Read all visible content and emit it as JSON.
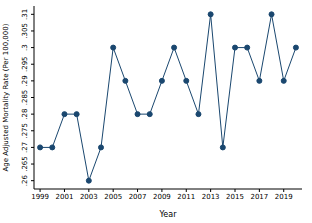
{
  "chart_data": {
    "type": "line",
    "x_label": "Year",
    "y_label": "Age Adjusted Mortality Rate (Per 100,000)",
    "x": [
      1999,
      2000,
      2001,
      2002,
      2003,
      2004,
      2005,
      2006,
      2007,
      2008,
      2009,
      2010,
      2011,
      2012,
      2013,
      2014,
      2015,
      2016,
      2017,
      2018,
      2019,
      2020
    ],
    "series": [
      {
        "name": "Age Adjusted Mortality Rate (Per 100,000)",
        "color": "#1a476f",
        "marker": "circle",
        "line_style": "solid",
        "values": [
          0.27,
          0.27,
          0.28,
          0.28,
          0.26,
          0.27,
          0.3,
          0.29,
          0.28,
          0.28,
          0.29,
          0.3,
          0.29,
          0.28,
          0.31,
          0.27,
          0.3,
          0.3,
          0.29,
          0.31,
          0.29,
          0.3
        ]
      }
    ],
    "xlim": [
      1998.5,
      2020.5
    ],
    "xticks": [
      1999,
      2001,
      2003,
      2005,
      2007,
      2009,
      2011,
      2013,
      2015,
      2017,
      2019
    ],
    "ylim": [
      0.2575,
      0.3125
    ],
    "yticks": [
      {
        "value": 0.26,
        "label": ".26"
      },
      {
        "value": 0.265,
        "label": ".265"
      },
      {
        "value": 0.27,
        "label": ".27"
      },
      {
        "value": 0.275,
        "label": ".275"
      },
      {
        "value": 0.28,
        "label": ".28"
      },
      {
        "value": 0.285,
        "label": ".285"
      },
      {
        "value": 0.29,
        "label": ".29"
      },
      {
        "value": 0.295,
        "label": ".295"
      },
      {
        "value": 0.3,
        "label": ".3"
      },
      {
        "value": 0.305,
        "label": ".305"
      },
      {
        "value": 0.31,
        "label": ".31"
      }
    ],
    "grid": false
  }
}
